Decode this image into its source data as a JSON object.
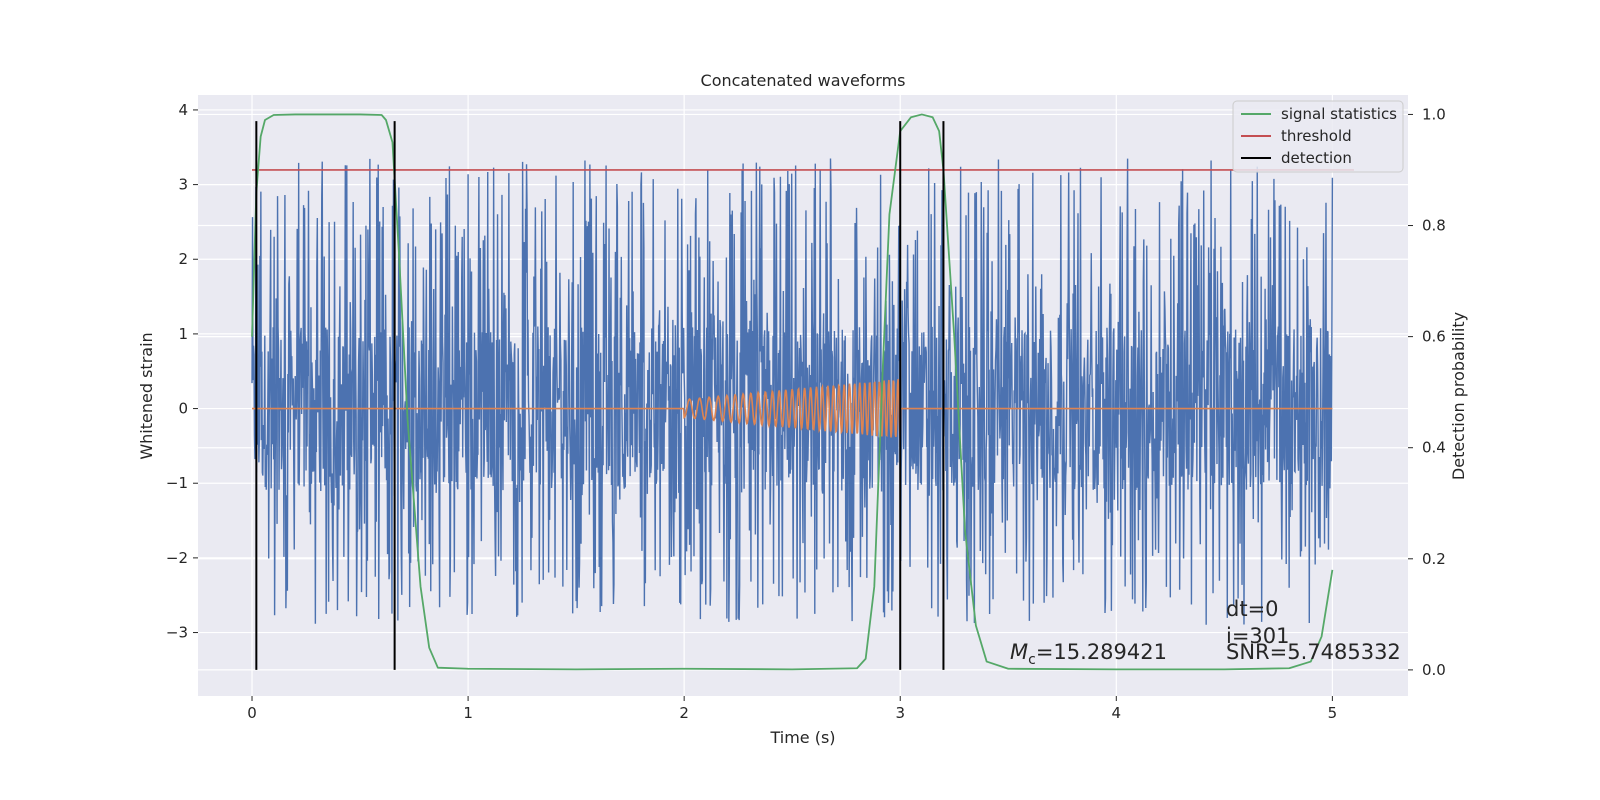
{
  "chart_data": {
    "type": "line",
    "title": "Concatenated waveforms",
    "xlabel": "Time (s)",
    "ylabel": "Whitened strain",
    "y2label": "Detection probability",
    "xlim": [
      -0.25,
      5.35
    ],
    "ylim": [
      -3.85,
      4.2
    ],
    "y2lim": [
      -0.047,
      1.035
    ],
    "xticks": [
      0,
      1,
      2,
      3,
      4,
      5
    ],
    "yticks": [
      -3,
      -2,
      -1,
      0,
      1,
      2,
      3,
      4
    ],
    "y2ticks": [
      0.0,
      0.2,
      0.4,
      0.6,
      0.8,
      1.0
    ],
    "xtick_labels": [
      "0",
      "1",
      "2",
      "3",
      "4",
      "5"
    ],
    "ytick_labels": [
      "−3",
      "−2",
      "−1",
      "0",
      "1",
      "2",
      "3",
      "4"
    ],
    "y2tick_labels": [
      "0.0",
      "0.2",
      "0.4",
      "0.6",
      "0.8",
      "1.0"
    ],
    "grid": true,
    "legend_position": "top-right",
    "colors": {
      "background": "#eaeaf2",
      "grid": "#ffffff",
      "noise": "#4c72b0",
      "waveform": "#dd8452",
      "signal_statistics": "#55a868",
      "threshold": "#c44e52",
      "detection": "#000000"
    },
    "noise": {
      "x_range": [
        0,
        5
      ],
      "core_band": [
        -0.9,
        0.9
      ],
      "peak_range": [
        -3.5,
        3.85
      ]
    },
    "waveform": {
      "flat_value": 0,
      "chirp_start": 2.0,
      "chirp_end": 3.0,
      "amplitude_start": 0.12,
      "amplitude_end": 0.4
    },
    "signal_statistics": {
      "x": [
        0,
        0.02,
        0.04,
        0.06,
        0.1,
        0.2,
        0.5,
        0.6,
        0.62,
        0.65,
        0.68,
        0.72,
        0.78,
        0.82,
        0.86,
        1.0,
        1.5,
        2.0,
        2.5,
        2.8,
        2.84,
        2.88,
        2.92,
        2.95,
        3.0,
        3.05,
        3.1,
        3.15,
        3.18,
        3.2,
        3.25,
        3.3,
        3.35,
        3.4,
        3.5,
        4.0,
        4.5,
        4.8,
        4.9,
        4.95,
        5.0
      ],
      "values": [
        0.6,
        0.86,
        0.96,
        0.99,
        0.999,
        1.0,
        1.0,
        0.999,
        0.99,
        0.95,
        0.75,
        0.45,
        0.15,
        0.04,
        0.004,
        0.002,
        0.001,
        0.002,
        0.001,
        0.003,
        0.02,
        0.15,
        0.55,
        0.82,
        0.97,
        0.995,
        1.0,
        0.995,
        0.97,
        0.9,
        0.6,
        0.25,
        0.08,
        0.015,
        0.002,
        0.001,
        0.001,
        0.003,
        0.015,
        0.06,
        0.18
      ]
    },
    "threshold": {
      "value": 0.9,
      "x_range": [
        0,
        5.1
      ]
    },
    "detections": [
      0.02,
      0.66,
      3.0,
      3.2
    ],
    "detection_y_range": [
      -3.5,
      3.85
    ],
    "legend": [
      {
        "label": "signal statistics",
        "color": "#55a868"
      },
      {
        "label": "threshold",
        "color": "#c44e52"
      },
      {
        "label": "detection",
        "color": "#000000"
      }
    ],
    "annotations": {
      "mc_symbol": "M",
      "mc_sub": "c",
      "mc_value": "=15.289421",
      "dt": "dt=0",
      "i": "i=301",
      "snr": "SNR=5.7485332"
    }
  }
}
